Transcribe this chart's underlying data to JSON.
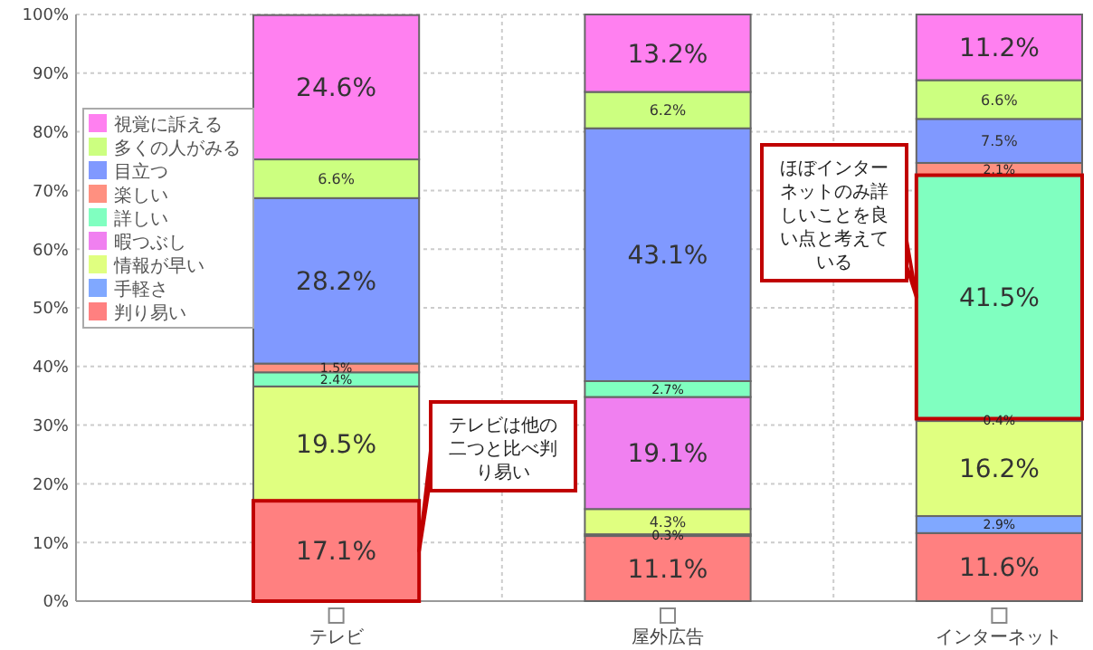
{
  "chart_data": {
    "type": "bar",
    "stacked": true,
    "categories": [
      "テレビ",
      "屋外広告",
      "インターネット"
    ],
    "series": [
      {
        "name": "判り易い",
        "color": "#ff8080",
        "values": [
          17.1,
          11.1,
          11.6
        ],
        "value_labels": [
          "17.1%",
          "11.1%",
          "11.6%"
        ]
      },
      {
        "name": "手軽さ",
        "color": "#80a8ff",
        "values": [
          null,
          0.3,
          2.9
        ],
        "value_labels": [
          null,
          "0.3%",
          "2.9%"
        ]
      },
      {
        "name": "情報が早い",
        "color": "#e0ff80",
        "values": [
          19.5,
          4.3,
          16.2
        ],
        "value_labels": [
          "19.5%",
          "4.3%",
          "16.2%"
        ]
      },
      {
        "name": "暇つぶし",
        "color": "#f080f0",
        "values": [
          null,
          19.1,
          0.4
        ],
        "value_labels": [
          null,
          "19.1%",
          "0.4%"
        ]
      },
      {
        "name": "詳しい",
        "color": "#80ffc0",
        "values": [
          2.4,
          2.7,
          41.5
        ],
        "value_labels": [
          "2.4%",
          "2.7%",
          "41.5%"
        ]
      },
      {
        "name": "楽しい",
        "color": "#ff9080",
        "values": [
          1.5,
          null,
          2.1
        ],
        "value_labels": [
          "1.5%",
          null,
          "2.1%"
        ]
      },
      {
        "name": "目立つ",
        "color": "#8099ff",
        "values": [
          28.2,
          43.1,
          7.5
        ],
        "value_labels": [
          "28.2%",
          "43.1%",
          "7.5%"
        ]
      },
      {
        "name": "多くの人がみる",
        "color": "#ccff80",
        "values": [
          6.6,
          6.2,
          6.6
        ],
        "value_labels": [
          "6.6%",
          "6.2%",
          "6.6%"
        ]
      },
      {
        "name": "視覚に訴える",
        "color": "#ff80f0",
        "values": [
          24.6,
          13.2,
          11.2
        ],
        "value_labels": [
          "24.6%",
          "13.2%",
          "11.2%"
        ]
      }
    ],
    "ylim": [
      0,
      100
    ],
    "yticks": [
      {
        "value": 0,
        "label": "0%"
      },
      {
        "value": 10,
        "label": "10%"
      },
      {
        "value": 20,
        "label": "20%"
      },
      {
        "value": 30,
        "label": "30%"
      },
      {
        "value": 40,
        "label": "40%"
      },
      {
        "value": 50,
        "label": "50%"
      },
      {
        "value": 60,
        "label": "60%"
      },
      {
        "value": 70,
        "label": "70%"
      },
      {
        "value": 80,
        "label": "80%"
      },
      {
        "value": 90,
        "label": "90%"
      },
      {
        "value": 100,
        "label": "100%"
      }
    ],
    "grid": true,
    "legend": "top left",
    "annotations": [
      "テレビは他の二つと比べ判り易い",
      "ほぼインターネットのみ詳しいことを良い点と考えている"
    ]
  }
}
